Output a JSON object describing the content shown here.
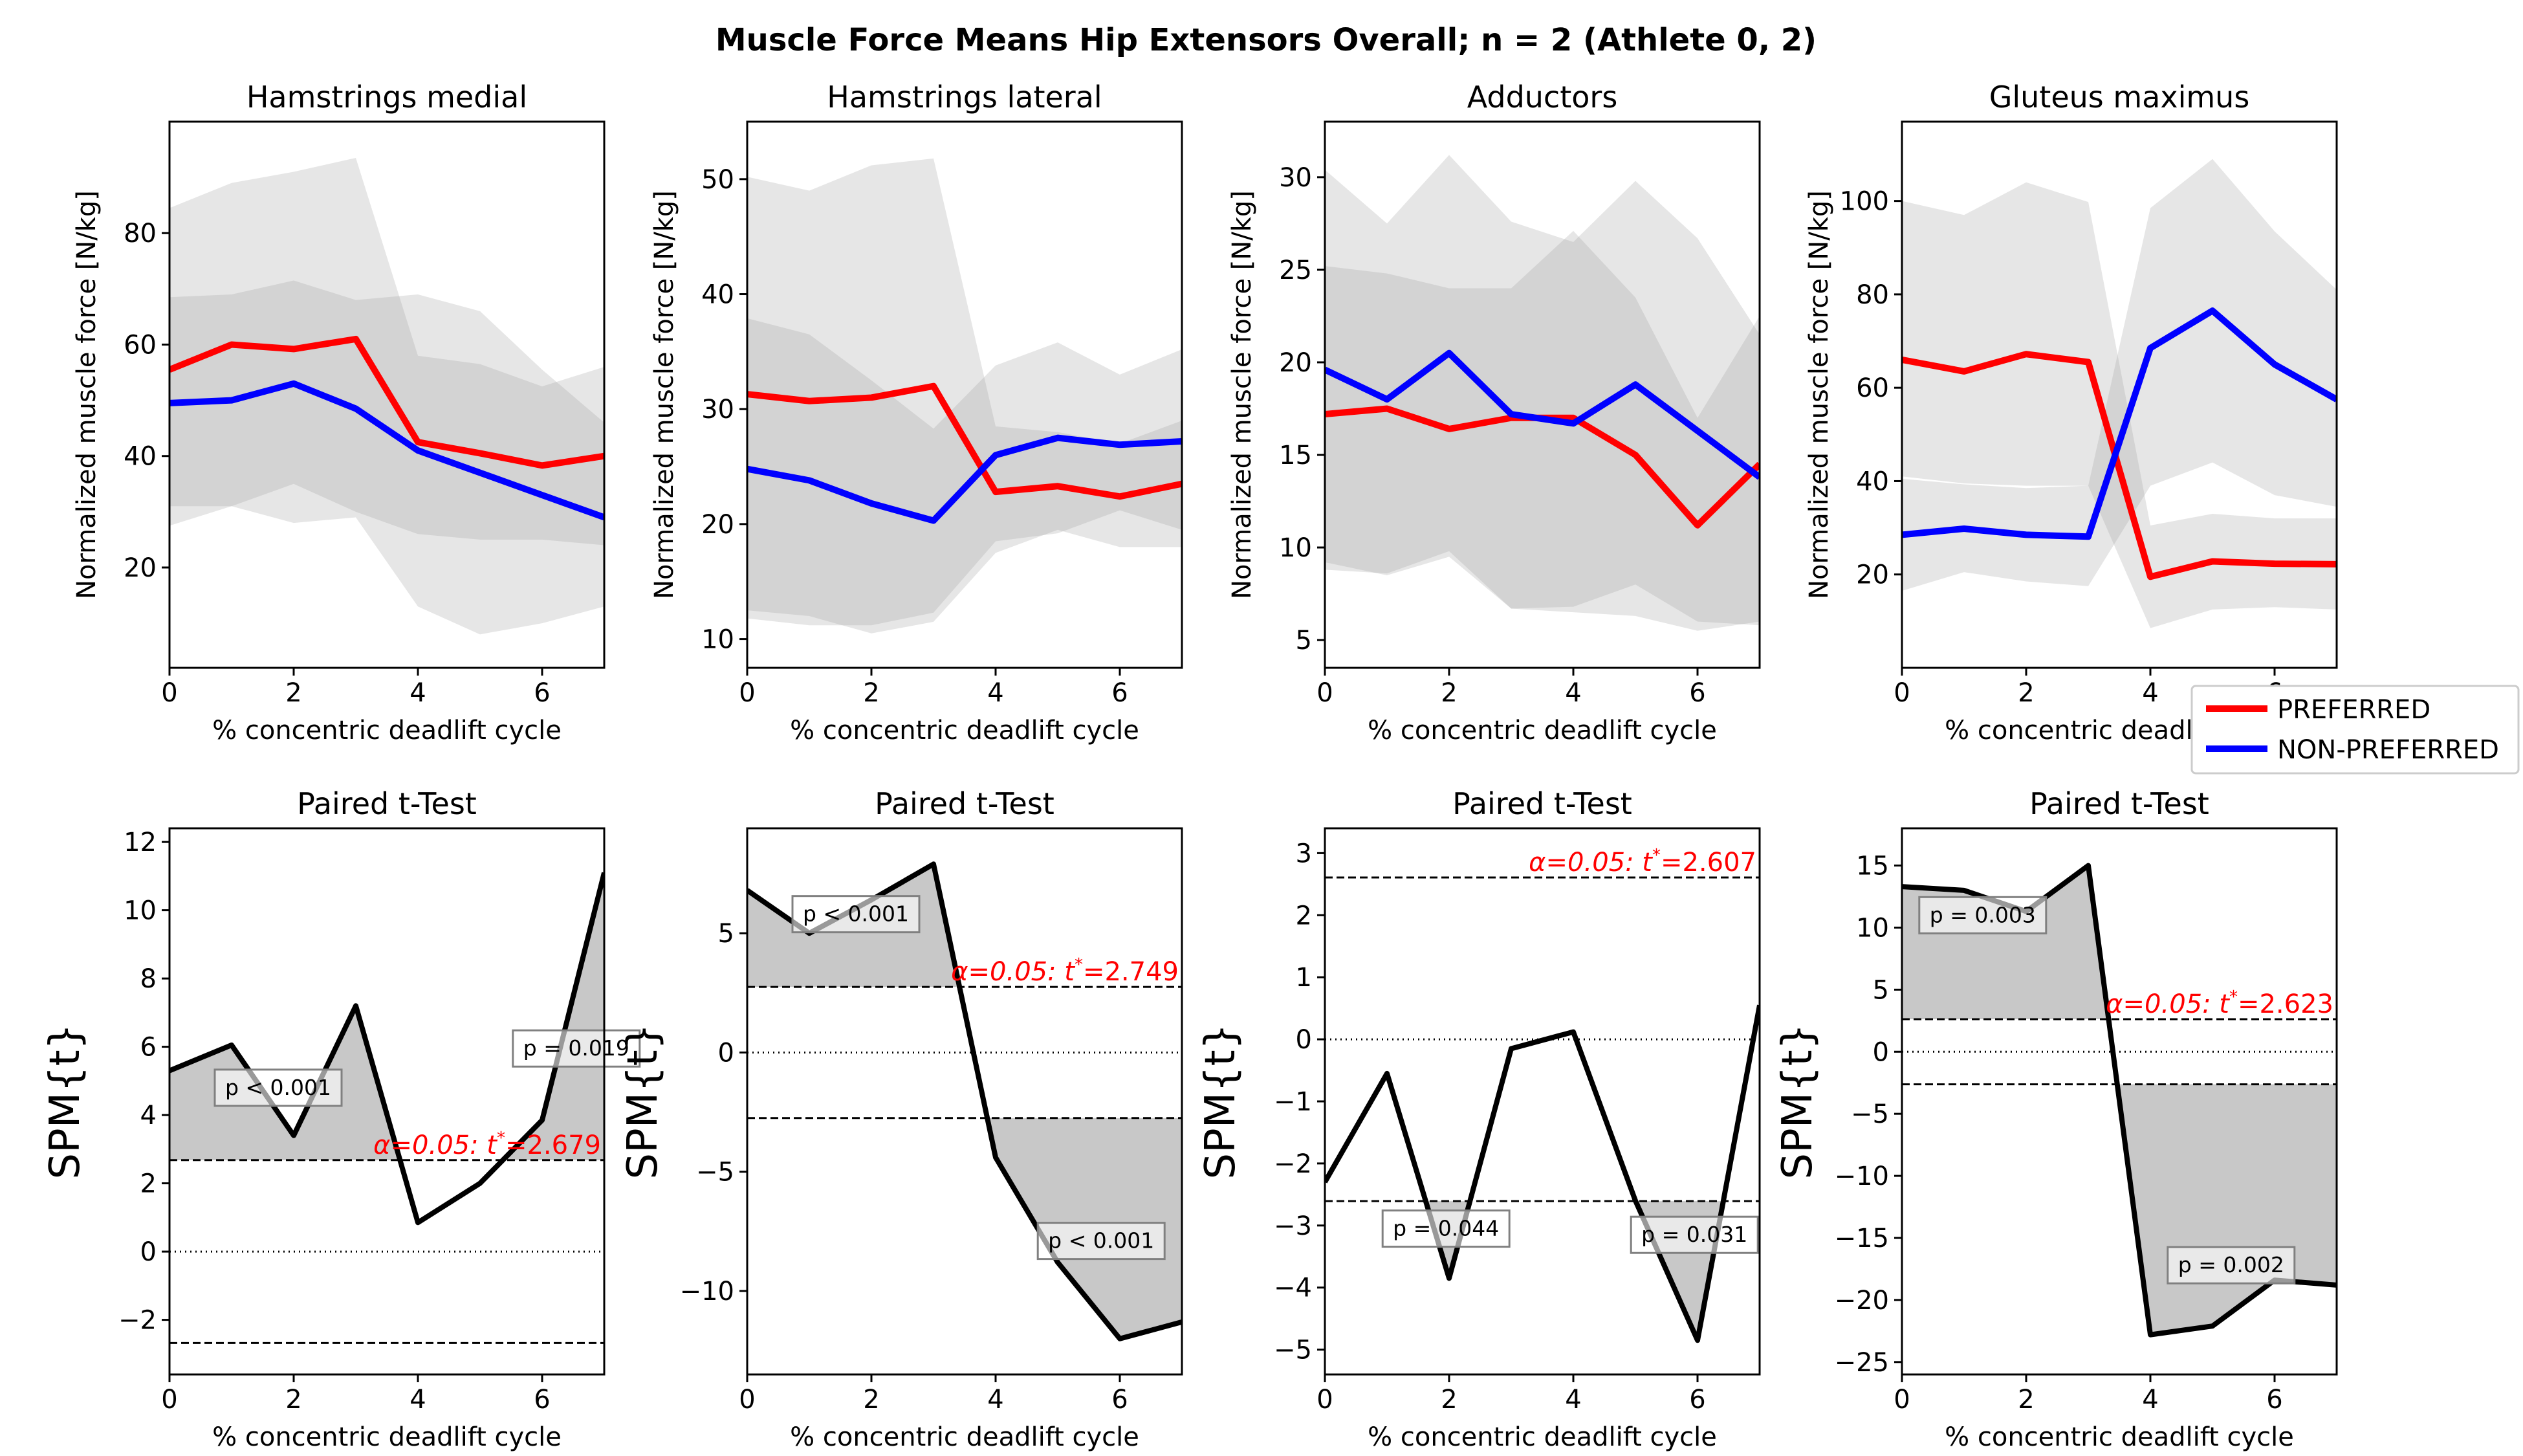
{
  "figure": {
    "title": "Muscle Force Means Hip Extensors Overall; n = 2 (Athlete 0, 2)"
  },
  "legend": {
    "placement": "right, between rows",
    "items": [
      {
        "label": "PREFERRED",
        "color": "#ff0000"
      },
      {
        "label": "NON-PREFERRED",
        "color": "#0000ff"
      }
    ]
  },
  "chart_data": [
    {
      "type": "line",
      "title": "Hamstrings medial",
      "xlabel": "% concentric deadlift cycle",
      "ylabel": "Normalized muscle force [N/kg]",
      "xlim": [
        0,
        7
      ],
      "ylim": [
        2,
        100
      ],
      "xticks": [
        0,
        2,
        4,
        6
      ],
      "yticks": [
        20,
        40,
        60,
        80
      ],
      "x": [
        0,
        1,
        2,
        3,
        4,
        5,
        6,
        7
      ],
      "series": [
        {
          "name": "PREFERRED",
          "color": "#ff0000",
          "values": [
            55.5,
            60,
            59.2,
            61,
            42.5,
            40.5,
            38.3,
            40
          ],
          "band": {
            "lower": [
              27.5,
              31,
              28,
              29,
              13,
              8,
              10,
              13
            ],
            "upper": [
              84.5,
              89,
              91,
              93.5,
              58,
              56.5,
              52.5,
              56
            ]
          }
        },
        {
          "name": "NON-PREFERRED",
          "color": "#0000ff",
          "values": [
            49.5,
            50,
            53,
            48.5,
            41,
            37,
            33,
            29
          ],
          "band": {
            "lower": [
              31,
              31,
              35,
              30,
              26,
              25,
              25,
              24
            ],
            "upper": [
              68.5,
              69,
              71.5,
              68,
              69,
              66,
              55.5,
              46
            ]
          }
        }
      ]
    },
    {
      "type": "line",
      "title": "Hamstrings lateral",
      "xlabel": "% concentric deadlift cycle",
      "ylabel": "Normalized muscle force [N/kg]",
      "xlim": [
        0,
        7
      ],
      "ylim": [
        7.5,
        55
      ],
      "xticks": [
        0,
        2,
        4,
        6
      ],
      "yticks": [
        10,
        20,
        30,
        40,
        50
      ],
      "x": [
        0,
        1,
        2,
        3,
        4,
        5,
        6,
        7
      ],
      "series": [
        {
          "name": "PREFERRED",
          "color": "#ff0000",
          "values": [
            31.3,
            30.7,
            31,
            32,
            22.8,
            23.3,
            22.4,
            23.5
          ],
          "band": {
            "lower": [
              12.5,
              12,
              10.5,
              11.5,
              17.5,
              19.5,
              18,
              18
            ],
            "upper": [
              50.2,
              49,
              51.2,
              51.8,
              28.5,
              28,
              27,
              29
            ]
          }
        },
        {
          "name": "NON-PREFERRED",
          "color": "#0000ff",
          "values": [
            24.8,
            23.8,
            21.8,
            20.3,
            26,
            27.5,
            26.9,
            27.2
          ],
          "band": {
            "lower": [
              11.8,
              11.2,
              11.2,
              12.3,
              18.5,
              19.2,
              21.2,
              19.5
            ],
            "upper": [
              37.9,
              36.5,
              32.5,
              28.3,
              33.8,
              35.8,
              33,
              35.2
            ]
          }
        }
      ]
    },
    {
      "type": "line",
      "title": "Adductors",
      "xlabel": "% concentric deadlift cycle",
      "ylabel": "Normalized muscle force [N/kg]",
      "xlim": [
        0,
        7
      ],
      "ylim": [
        3.5,
        33
      ],
      "xticks": [
        0,
        2,
        4,
        6
      ],
      "yticks": [
        5,
        10,
        15,
        20,
        25,
        30
      ],
      "x": [
        0,
        1,
        2,
        3,
        4,
        5,
        6,
        7
      ],
      "series": [
        {
          "name": "PREFERRED",
          "color": "#ff0000",
          "values": [
            17.2,
            17.5,
            16.4,
            17,
            17,
            15,
            11.2,
            14.5
          ],
          "band": {
            "lower": [
              9.2,
              8.5,
              9.5,
              6.7,
              6.5,
              6.3,
              5.5,
              6
            ],
            "upper": [
              25.2,
              24.8,
              24,
              24,
              27.1,
              23.5,
              17,
              22.5
            ]
          }
        },
        {
          "name": "NON-PREFERRED",
          "color": "#0000ff",
          "values": [
            19.6,
            18,
            20.5,
            17.2,
            16.7,
            18.8,
            16.3,
            13.8
          ],
          "band": {
            "lower": [
              8.8,
              8.6,
              9.8,
              6.7,
              6.8,
              8,
              6,
              5.8
            ],
            "upper": [
              30.4,
              27.5,
              31.2,
              27.6,
              26.5,
              29.8,
              26.7,
              21.5
            ]
          }
        }
      ]
    },
    {
      "type": "line",
      "title": "Gluteus maximus",
      "xlabel": "% concentric deadlift cycle",
      "ylabel": "Normalized muscle force [N/kg]",
      "xlim": [
        0,
        7
      ],
      "ylim": [
        0,
        117
      ],
      "xticks": [
        0,
        2,
        4,
        6
      ],
      "yticks": [
        20,
        40,
        60,
        80,
        100
      ],
      "x": [
        0,
        1,
        2,
        3,
        4,
        5,
        6,
        7
      ],
      "series": [
        {
          "name": "PREFERRED",
          "color": "#ff0000",
          "values": [
            66,
            63.5,
            67.2,
            65.5,
            19.5,
            22.8,
            22.3,
            22.2
          ],
          "band": {
            "lower": [
              41,
              39.5,
              39,
              39,
              8.5,
              12.5,
              13,
              12.5
            ],
            "upper": [
              100,
              97,
              104,
              99.8,
              30.5,
              33,
              32,
              32
            ]
          }
        },
        {
          "name": "NON-PREFERRED",
          "color": "#0000ff",
          "values": [
            28.5,
            29.8,
            28.5,
            28.1,
            68.5,
            76.5,
            65,
            57.5
          ],
          "band": {
            "lower": [
              16.5,
              20.5,
              18.5,
              17.5,
              39,
              44,
              37,
              34.5
            ],
            "upper": [
              40.5,
              39.3,
              38.5,
              39,
              98.5,
              109,
              93.5,
              81
            ]
          }
        }
      ]
    },
    {
      "type": "line",
      "title": "Paired t-Test",
      "xlabel": "% concentric deadlift cycle",
      "ylabel": "SPM{t}",
      "xlim": [
        0,
        7
      ],
      "ylim": [
        -3.6,
        12.4
      ],
      "xticks": [
        0,
        2,
        4,
        6
      ],
      "yticks": [
        -2,
        0,
        2,
        4,
        6,
        8,
        10,
        12
      ],
      "x": [
        0,
        1,
        2,
        3,
        4,
        5,
        6,
        7
      ],
      "values": [
        5.3,
        6.05,
        3.4,
        7.2,
        0.85,
        2,
        3.85,
        11.1
      ],
      "threshold": 2.679,
      "threshold_label_prefix": "α=0.05:  ",
      "threshold_label_t": "t",
      "threshold_label_suffix": "=2.679",
      "annotations": [
        {
          "text": "p < 0.001",
          "x": 1.75,
          "y": 4.8
        },
        {
          "text": "p = 0.019",
          "x": 6.55,
          "y": 5.95
        }
      ]
    },
    {
      "type": "line",
      "title": "Paired t-Test",
      "xlabel": "% concentric deadlift cycle",
      "ylabel": "SPM{t}",
      "xlim": [
        0,
        7
      ],
      "ylim": [
        -13.5,
        9.4
      ],
      "xticks": [
        0,
        2,
        4,
        6
      ],
      "yticks": [
        -10,
        -5,
        0,
        5
      ],
      "x": [
        0,
        1,
        2,
        3,
        4,
        5,
        6,
        7
      ],
      "values": [
        6.8,
        5,
        6.4,
        7.9,
        -4.4,
        -8.8,
        -12,
        -11.3
      ],
      "threshold": 2.749,
      "threshold_label_prefix": "α=0.05:  ",
      "threshold_label_t": "t",
      "threshold_label_suffix": "=2.749",
      "annotations": [
        {
          "text": "p < 0.001",
          "x": 1.75,
          "y": 5.8
        },
        {
          "text": "p < 0.001",
          "x": 5.7,
          "y": -7.9
        }
      ]
    },
    {
      "type": "line",
      "title": "Paired t-Test",
      "xlabel": "% concentric deadlift cycle",
      "ylabel": "SPM{t}",
      "xlim": [
        0,
        7
      ],
      "ylim": [
        -5.4,
        3.4
      ],
      "xticks": [
        0,
        2,
        4,
        6
      ],
      "yticks": [
        -5,
        -4,
        -3,
        -2,
        -1,
        0,
        1,
        2,
        3
      ],
      "x": [
        0,
        1,
        2,
        3,
        4,
        5,
        6,
        7
      ],
      "values": [
        -2.3,
        -0.55,
        -3.85,
        -0.15,
        0.12,
        -2.6,
        -4.85,
        0.55
      ],
      "threshold": 2.607,
      "threshold_label_prefix": "α=0.05:  ",
      "threshold_label_t": "t",
      "threshold_label_suffix": "=2.607",
      "annotations": [
        {
          "text": "p = 0.044",
          "x": 1.95,
          "y": -3.05
        },
        {
          "text": "p = 0.031",
          "x": 5.95,
          "y": -3.15
        }
      ]
    },
    {
      "type": "line",
      "title": "Paired t-Test",
      "xlabel": "% concentric deadlift cycle",
      "ylabel": "SPM{t}",
      "xlim": [
        0,
        7
      ],
      "ylim": [
        -26,
        18
      ],
      "xticks": [
        0,
        2,
        4,
        6
      ],
      "yticks": [
        -25,
        -20,
        -15,
        -10,
        -5,
        0,
        5,
        10,
        15
      ],
      "x": [
        0,
        1,
        2,
        3,
        4,
        5,
        6,
        7
      ],
      "values": [
        13.3,
        13,
        11.3,
        15,
        -22.8,
        -22.1,
        -18.4,
        -18.8
      ],
      "threshold": 2.623,
      "threshold_label_prefix": "α=0.05:  ",
      "threshold_label_t": "t",
      "threshold_label_suffix": "=2.623",
      "annotations": [
        {
          "text": "p = 0.003",
          "x": 1.3,
          "y": 11
        },
        {
          "text": "p = 0.002",
          "x": 5.3,
          "y": -17.2
        }
      ]
    }
  ]
}
